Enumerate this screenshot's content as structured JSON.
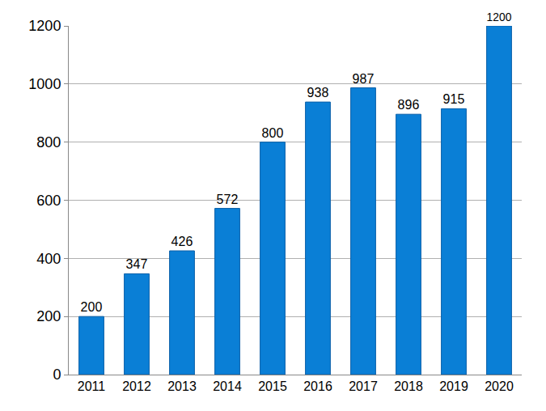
{
  "chart_data": {
    "type": "bar",
    "categories": [
      "2011",
      "2012",
      "2013",
      "2014",
      "2015",
      "2016",
      "2017",
      "2018",
      "2019",
      "2020"
    ],
    "values": [
      200,
      347,
      426,
      572,
      800,
      938,
      987,
      896,
      915,
      1200
    ],
    "color": "#0a7fd6",
    "ylim": [
      0,
      1200
    ],
    "yticks": [
      0,
      200,
      400,
      600,
      800,
      1000,
      1200
    ],
    "grid": true,
    "data_labels": true
  }
}
